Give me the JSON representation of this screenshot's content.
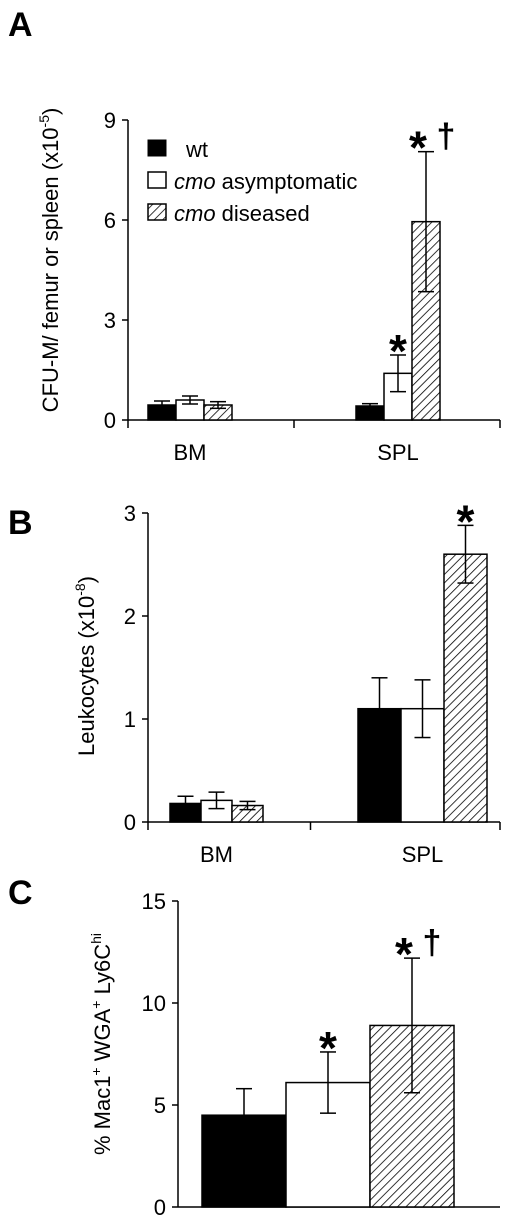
{
  "chart_data": [
    {
      "panel": "A",
      "type": "bar",
      "ylabel": {
        "main": "CFU-M/ femur or spleen (x10",
        "sup": "-5",
        "end": ")"
      },
      "ylim": [
        0,
        9
      ],
      "yticks": [
        0,
        3,
        6,
        9
      ],
      "categories": [
        "BM",
        "SPL"
      ],
      "series": [
        {
          "name": "wt",
          "values": [
            0.45,
            0.42
          ],
          "errors": [
            0.12,
            0.07
          ]
        },
        {
          "name_italic": "cmo",
          "name_rest": " asymptomatic",
          "values": [
            0.6,
            1.4
          ],
          "errors": [
            0.12,
            0.55
          ]
        },
        {
          "name_italic": "cmo",
          "name_rest": " diseased",
          "values": [
            0.45,
            5.95
          ],
          "errors": [
            0.1,
            2.1
          ]
        }
      ],
      "annotations": [
        {
          "category": 1,
          "series": 1,
          "text": "*"
        },
        {
          "category": 1,
          "series": 2,
          "text": "*",
          "extra": "†"
        }
      ]
    },
    {
      "panel": "B",
      "type": "bar",
      "ylabel": {
        "main": "Leukocytes (x10",
        "sup": "-8",
        "end": ")"
      },
      "ylim": [
        0,
        3
      ],
      "yticks": [
        0,
        1,
        2,
        3
      ],
      "categories": [
        "BM",
        "SPL"
      ],
      "series": [
        {
          "name": "wt",
          "values": [
            0.18,
            1.1
          ],
          "errors": [
            0.07,
            0.3
          ]
        },
        {
          "name": "cmo asymptomatic",
          "values": [
            0.21,
            1.1
          ],
          "errors": [
            0.08,
            0.28
          ]
        },
        {
          "name": "cmo diseased",
          "values": [
            0.16,
            2.6
          ],
          "errors": [
            0.04,
            0.28
          ]
        }
      ],
      "annotations": [
        {
          "category": 1,
          "series": 2,
          "text": "*"
        }
      ]
    },
    {
      "panel": "C",
      "type": "bar",
      "ylabel": {
        "main": "% Mac1",
        "sup1": "+",
        "mid": " WGA",
        "sup2": "+",
        "mid2": " Ly6C",
        "sup3": "hi"
      },
      "ylim": [
        0,
        15
      ],
      "yticks": [
        0,
        5,
        10,
        15
      ],
      "categories": [
        ""
      ],
      "series": [
        {
          "name": "wt",
          "values": [
            4.5
          ],
          "errors": [
            1.3
          ]
        },
        {
          "name": "cmo asymptomatic",
          "values": [
            6.1
          ],
          "errors": [
            1.5
          ]
        },
        {
          "name": "cmo diseased",
          "values": [
            8.9
          ],
          "errors": [
            3.3
          ]
        }
      ],
      "annotations": [
        {
          "category": 0,
          "series": 1,
          "text": "*"
        },
        {
          "category": 0,
          "series": 2,
          "text": "*",
          "extra": "†"
        }
      ]
    }
  ]
}
